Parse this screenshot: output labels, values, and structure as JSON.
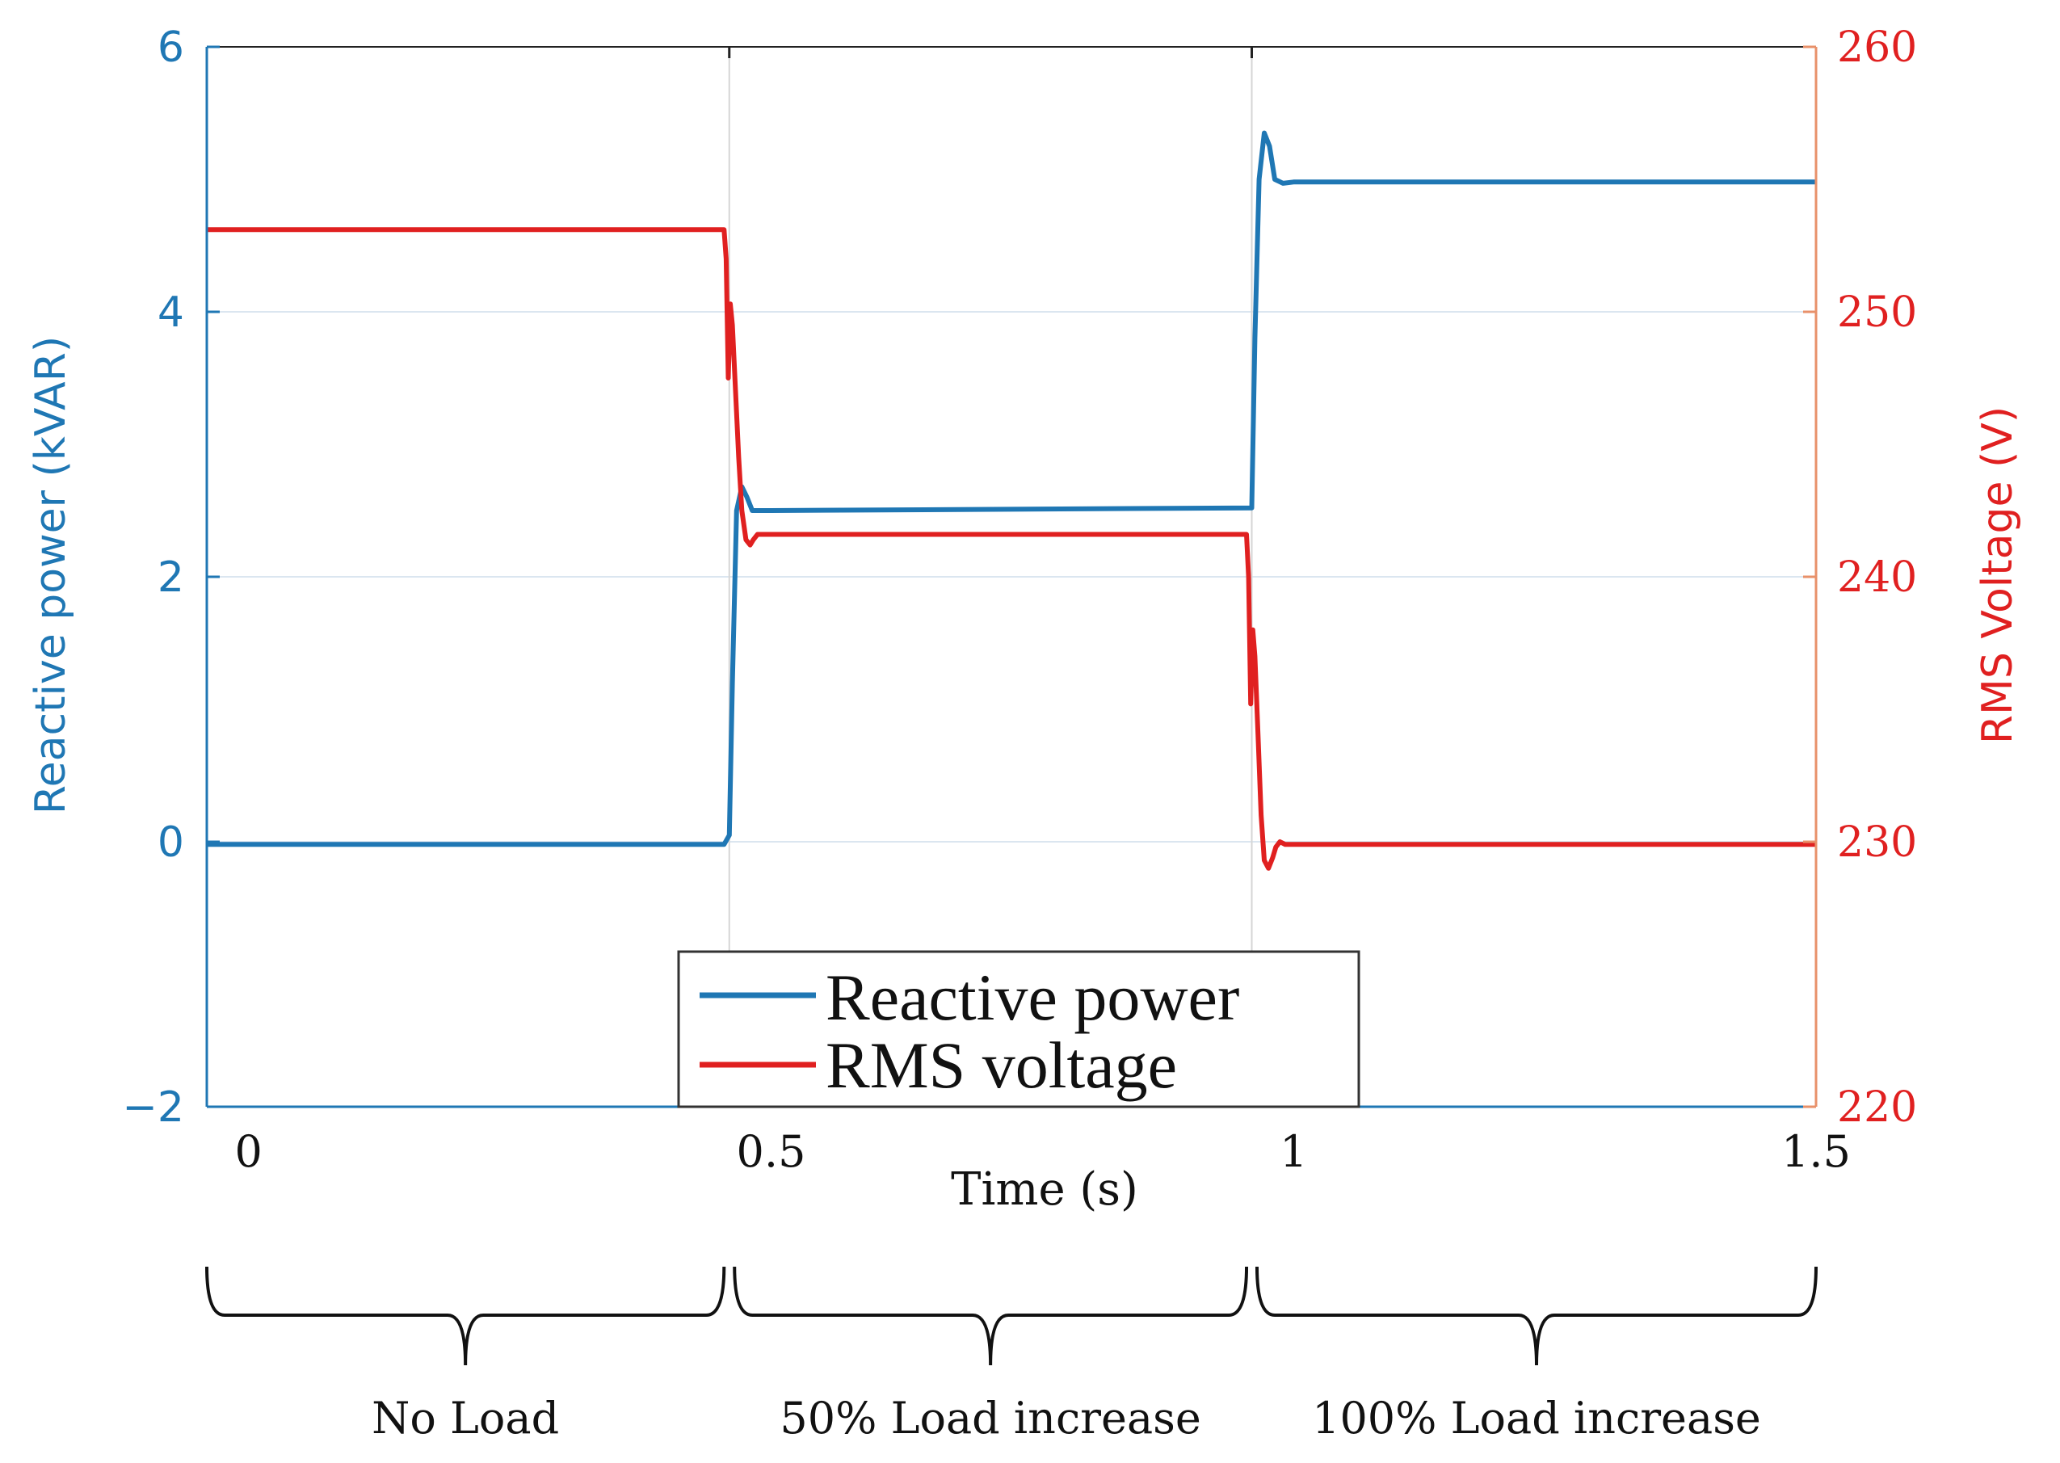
{
  "chart_data": {
    "type": "line",
    "title": "",
    "xlabel": "Time (s)",
    "ylabel_left": "Reactive power (kVAR)",
    "ylabel_right": "RMS Voltage (V)",
    "xlim": [
      -0.04,
      1.5
    ],
    "ylim_left": [
      -2,
      6
    ],
    "ylim_right": [
      220,
      260
    ],
    "x_ticks": [
      {
        "value": 0,
        "label": "0"
      },
      {
        "value": 0.5,
        "label": "0.5"
      },
      {
        "value": 1,
        "label": "1"
      },
      {
        "value": 1.5,
        "label": "1.5"
      }
    ],
    "y_ticks_left": [
      {
        "value": 6,
        "label": "6"
      },
      {
        "value": 4,
        "label": "4"
      },
      {
        "value": 2,
        "label": "2"
      },
      {
        "value": 0,
        "label": "0"
      },
      {
        "value": -2,
        "label": "−2"
      }
    ],
    "y_ticks_right": [
      {
        "value": 260,
        "label": "260"
      },
      {
        "value": 250,
        "label": "250"
      },
      {
        "value": 240,
        "label": "240"
      },
      {
        "value": 230,
        "label": "230"
      },
      {
        "value": 220,
        "label": "220"
      }
    ],
    "grid": true,
    "event_lines": [
      0.46,
      0.96
    ],
    "legend_position": "bottom-center",
    "series": [
      {
        "name": "Reactive power",
        "axis": "left",
        "color": "#1f77b4",
        "x": [
          -0.04,
          0.455,
          0.46,
          0.463,
          0.467,
          0.472,
          0.477,
          0.482,
          0.49,
          0.5,
          0.96,
          0.963,
          0.967,
          0.972,
          0.977,
          0.982,
          0.99,
          1.0,
          1.5
        ],
        "y": [
          -0.02,
          -0.02,
          0.05,
          1.2,
          2.5,
          2.68,
          2.6,
          2.5,
          2.5,
          2.5,
          2.52,
          3.8,
          5.0,
          5.35,
          5.25,
          5.0,
          4.97,
          4.98,
          4.98
        ]
      },
      {
        "name": "RMS voltage",
        "axis": "right",
        "color": "#e02020",
        "x": [
          -0.04,
          0.455,
          0.457,
          0.459,
          0.461,
          0.463,
          0.466,
          0.469,
          0.472,
          0.476,
          0.48,
          0.483,
          0.487,
          0.492,
          0.5,
          0.955,
          0.957,
          0.959,
          0.961,
          0.963,
          0.966,
          0.969,
          0.972,
          0.976,
          0.98,
          0.983,
          0.987,
          0.992,
          1.0,
          1.5
        ],
        "y": [
          253.1,
          253.1,
          252.0,
          247.5,
          250.3,
          249.5,
          247.0,
          244.5,
          242.5,
          241.4,
          241.2,
          241.4,
          241.6,
          241.6,
          241.6,
          241.6,
          240.0,
          235.2,
          238.0,
          237.0,
          234.0,
          231.0,
          229.3,
          229.0,
          229.4,
          229.8,
          230.0,
          229.9,
          229.9,
          229.9
        ]
      }
    ],
    "legend": [
      "Reactive power",
      "RMS voltage"
    ],
    "phases": [
      {
        "label": "No Load",
        "from": -0.04,
        "to": 0.455
      },
      {
        "label": "50% Load increase",
        "from": 0.465,
        "to": 0.955
      },
      {
        "label": "100% Load increase",
        "from": 0.965,
        "to": 1.5
      }
    ]
  }
}
